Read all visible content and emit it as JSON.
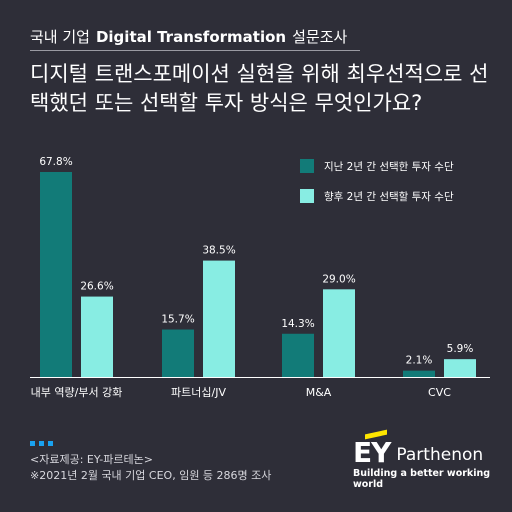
{
  "header": {
    "prefix": "국내 기업",
    "title_en": "Digital Transformation",
    "suffix": "설문조사"
  },
  "question": "디지털 트랜스포메이션 실현을 위해 최우선적으로 선택했던 또는 선택할 투자 방식은 무엇인가요?",
  "chart_data": {
    "type": "bar",
    "categories": [
      "내부 역량/부서 강화",
      "파트너십/JV",
      "M&A",
      "CVC"
    ],
    "series": [
      {
        "name": "지난 2년 간 선택한 투자 수단",
        "values": [
          67.8,
          15.7,
          14.3,
          2.1
        ],
        "labels": [
          "67.8%",
          "15.7%",
          "14.3%",
          "2.1%"
        ],
        "color": "#127b78"
      },
      {
        "name": "향후 2년 간 선택할 투자 수단",
        "values": [
          26.6,
          38.5,
          29.0,
          5.9
        ],
        "labels": [
          "26.6%",
          "38.5%",
          "29.0%",
          "5.9%"
        ],
        "color": "#88ede3"
      }
    ],
    "ylim": [
      0,
      67.8
    ],
    "grid": false,
    "legend": "top-right"
  },
  "source": {
    "line1": "<자료제공: EY-파르테논>",
    "line2": "※2021년 2월 국내 기업 CEO, 임원 등 286명 조사"
  },
  "logo": {
    "ey": "EY",
    "parthenon": "Parthenon",
    "tagline": "Building a better working world"
  },
  "colors": {
    "background": "#2e2e38",
    "accent_dots": "#1aa2f0",
    "logo_bar": "#ffe600"
  }
}
